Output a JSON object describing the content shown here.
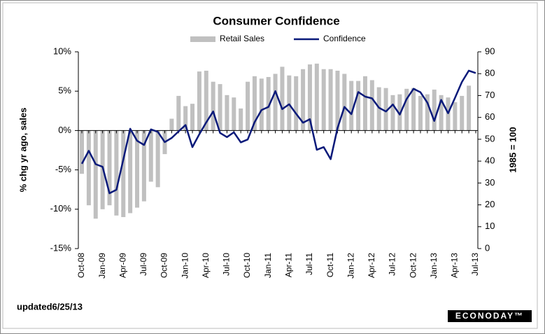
{
  "chart_data": {
    "type": "bar-line",
    "title": "Consumer Confidence",
    "ylabel": "% chg yr ago, sales",
    "y2label": "1985 = 100",
    "footnote": "updated6/25/13",
    "brand": "ECONODAY™",
    "categories": [
      "Oct-08",
      null,
      null,
      "Jan-09",
      null,
      null,
      "Apr-09",
      null,
      null,
      "Jul-09",
      null,
      null,
      "Oct-09",
      null,
      null,
      "Jan-10",
      null,
      null,
      "Apr-10",
      null,
      null,
      "Jul-10",
      null,
      null,
      "Oct-10",
      null,
      null,
      "Jan-11",
      null,
      null,
      "Apr-11",
      null,
      null,
      "Jul-11",
      null,
      null,
      "Oct-11",
      null,
      null,
      "Jan-12",
      null,
      null,
      "Apr-12",
      null,
      null,
      "Jul-12",
      null,
      null,
      "Oct-12",
      null,
      null,
      "Jan-13",
      null,
      null,
      "Apr-13",
      null,
      null,
      "Jul-13"
    ],
    "series": [
      {
        "name": "Retail Sales",
        "color": "#c0c0c0",
        "kind": "bar",
        "values": [
          -5.5,
          -9.5,
          -11.2,
          -10,
          -9.5,
          -10.8,
          -11,
          -10.5,
          -9.8,
          -9,
          -6.5,
          -7.2,
          -3,
          1.5,
          4.4,
          3.1,
          3.4,
          7.5,
          7.6,
          6.2,
          5.9,
          4.5,
          4.2,
          2.8,
          6.2,
          6.9,
          6.6,
          6.8,
          7.2,
          8.1,
          7.0,
          6.9,
          7.8,
          8.4,
          8.5,
          7.8,
          7.8,
          7.6,
          7.2,
          6.3,
          6.3,
          6.9,
          6.4,
          5.5,
          5.4,
          4.5,
          4.6,
          5.3,
          5.4,
          4.4,
          4.6,
          5.2,
          4.5,
          4.2,
          3.6,
          4.4,
          5.7,
          null
        ]
      },
      {
        "name": "Confidence",
        "color": "#0a1a7a",
        "kind": "line",
        "axis": "y2",
        "values": [
          38.8,
          44.7,
          38.6,
          37.4,
          25.3,
          26.9,
          40.8,
          54.8,
          49.3,
          47.4,
          54.5,
          53.4,
          48.7,
          50.6,
          53.6,
          56.5,
          46.4,
          52.3,
          57.7,
          62.7,
          52.9,
          51.0,
          53.2,
          48.6,
          49.9,
          57.8,
          63.4,
          64.8,
          72.0,
          63.8,
          66.0,
          61.7,
          57.6,
          59.2,
          45.2,
          46.4,
          40.9,
          55.2,
          64.8,
          61.5,
          71.6,
          69.5,
          68.7,
          64.4,
          62.7,
          65.9,
          61.3,
          68.4,
          73.1,
          71.5,
          66.7,
          58.4,
          68.0,
          61.9,
          69.0,
          76.2,
          81.4,
          80.3
        ]
      }
    ],
    "ylim": [
      -15,
      10
    ],
    "yticks": [
      {
        "value": -15,
        "label": "-15%"
      },
      {
        "value": -10,
        "label": "-10%"
      },
      {
        "value": -5,
        "label": "-5%"
      },
      {
        "value": 0,
        "label": "0%"
      },
      {
        "value": 5,
        "label": "5%"
      },
      {
        "value": 10,
        "label": "10%"
      }
    ],
    "y2lim": [
      0,
      90
    ],
    "y2ticks": [
      0,
      10,
      20,
      30,
      40,
      50,
      60,
      70,
      80,
      90
    ],
    "legend": "top"
  }
}
